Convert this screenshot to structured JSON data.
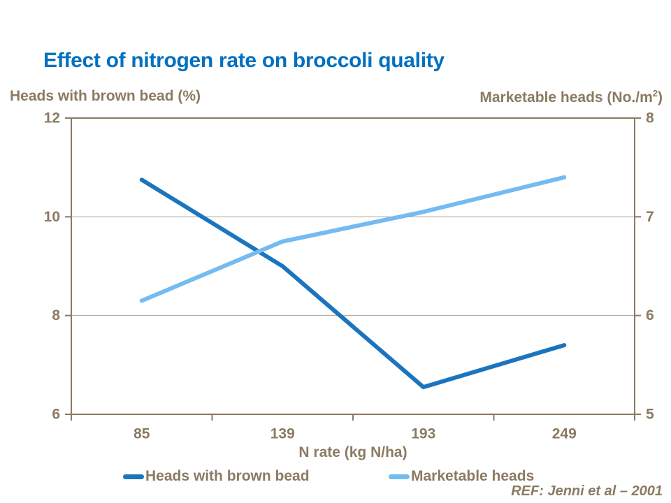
{
  "title": "Effect of nitrogen rate on broccoli quality",
  "footnote": "REF: Jenni et al – 2001",
  "colors": {
    "background": "#FFFFFF",
    "title": "#0070C0",
    "text": "#8B7A62",
    "axis": "#8B7A62",
    "grid": "#AD9F8D"
  },
  "chart_data": {
    "type": "line",
    "categories": [
      "85",
      "139",
      "193",
      "249"
    ],
    "xlabel": "N rate (kg N/ha)",
    "left_axis": {
      "label": "Heads with brown bead (%)",
      "range": [
        6,
        12
      ],
      "ticks": [
        12,
        10,
        8,
        6
      ]
    },
    "right_axis": {
      "label": "Marketable heads (No./m2)",
      "label_parts": [
        "Marketable heads (No./m",
        "2",
        ")"
      ],
      "range": [
        5,
        8
      ],
      "ticks": [
        8,
        7,
        6,
        5
      ]
    },
    "series": [
      {
        "name": "Heads with brown bead",
        "axis": "left",
        "color": "#1B75BE",
        "values": [
          10.75,
          9.0,
          6.55,
          7.4
        ]
      },
      {
        "name": "Marketable heads",
        "axis": "right",
        "color": "#74BBF2",
        "values": [
          6.15,
          6.75,
          7.05,
          7.4
        ]
      }
    ],
    "grid": true,
    "legend_position": "bottom"
  }
}
